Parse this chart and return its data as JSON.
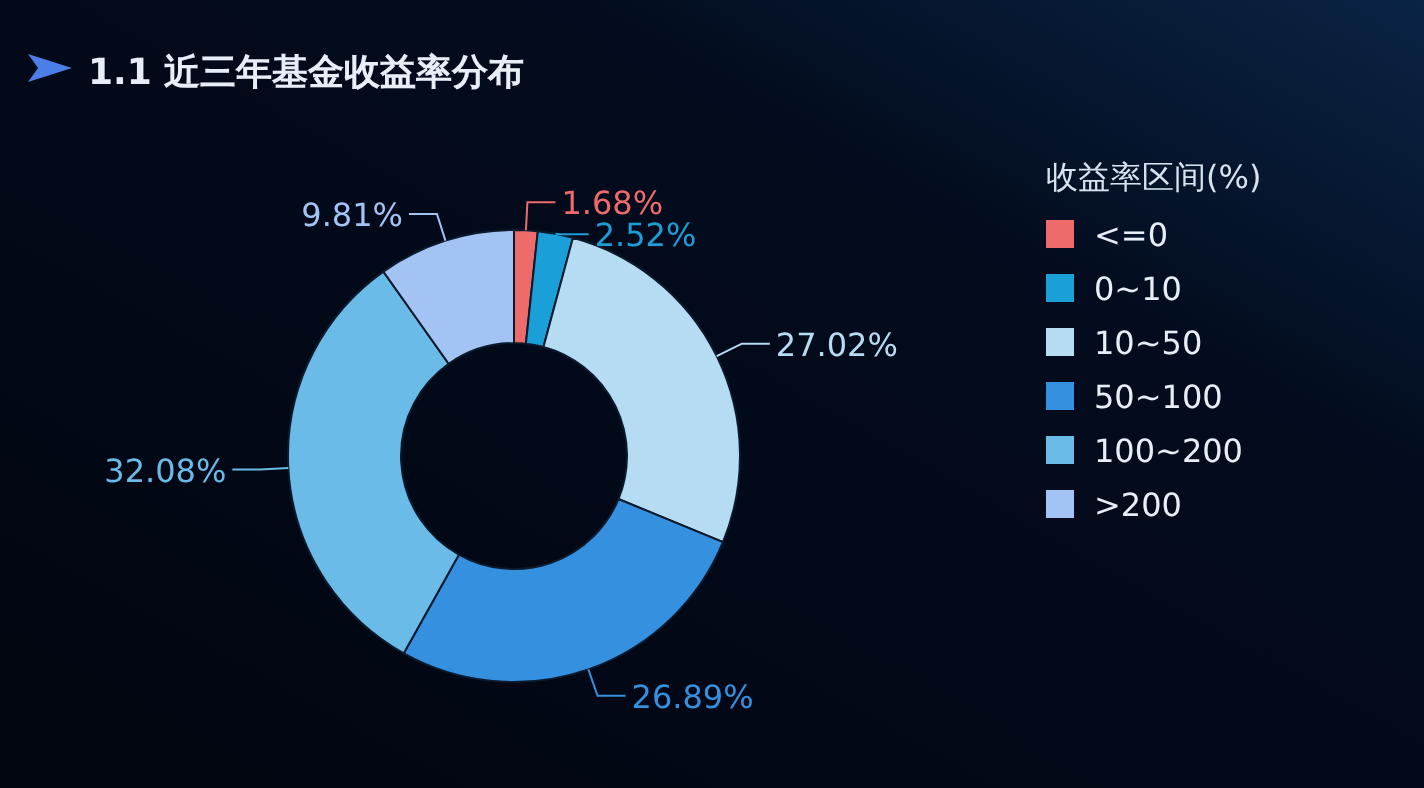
{
  "chart_data": {
    "type": "donut",
    "title": "1.1 近三年基金收益率分布",
    "legend_title": "收益率区间(%)",
    "categories": [
      "<=0",
      "0~10",
      "10~50",
      "50~100",
      "100~200",
      ">200"
    ],
    "values": [
      1.68,
      2.52,
      27.02,
      26.89,
      32.08,
      9.81
    ],
    "colors": [
      "#ee6b6b",
      "#1b9fd9",
      "#b5dcf3",
      "#3590e0",
      "#6bbbe8",
      "#a3c3f5"
    ],
    "value_labels": [
      "1.68%",
      "2.52%",
      "27.02%",
      "26.89%",
      "32.08%",
      "9.81%"
    ],
    "legend": "right"
  }
}
